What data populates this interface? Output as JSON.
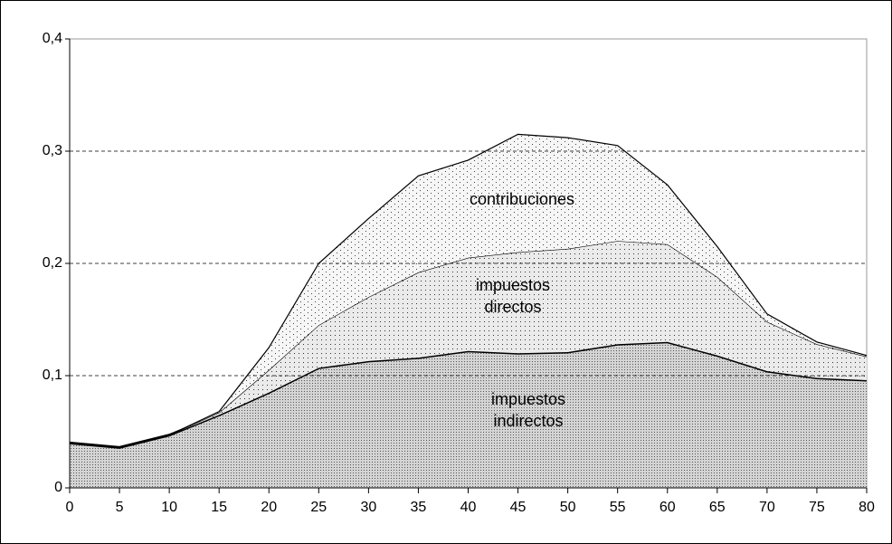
{
  "chart_data": {
    "type": "stacked-area",
    "x": [
      0,
      5,
      10,
      15,
      20,
      25,
      30,
      35,
      40,
      45,
      50,
      55,
      60,
      65,
      70,
      75,
      80
    ],
    "series": [
      {
        "name": "impuestos indirectos",
        "color": "#d4d4d4",
        "values": [
          0.04,
          0.036,
          0.047,
          0.065,
          0.085,
          0.107,
          0.113,
          0.116,
          0.122,
          0.12,
          0.121,
          0.128,
          0.13,
          0.118,
          0.104,
          0.098,
          0.096
        ]
      },
      {
        "name": "impuestos directos",
        "color": "#ebebeb",
        "values": [
          0,
          0,
          0,
          0.002,
          0.02,
          0.038,
          0.057,
          0.076,
          0.083,
          0.09,
          0.092,
          0.092,
          0.087,
          0.07,
          0.044,
          0.03,
          0.021
        ]
      },
      {
        "name": "contribuciones",
        "color": "#f6f6f6",
        "values": [
          0,
          0,
          0,
          0.001,
          0.02,
          0.055,
          0.07,
          0.086,
          0.087,
          0.105,
          0.099,
          0.085,
          0.053,
          0.027,
          0.007,
          0.002,
          0.001
        ]
      }
    ],
    "xlim": [
      0,
      80
    ],
    "xticks": [
      0,
      5,
      10,
      15,
      20,
      25,
      30,
      35,
      40,
      45,
      50,
      55,
      60,
      65,
      70,
      75,
      80
    ],
    "ylim": [
      0,
      0.4
    ],
    "yticks": [
      0,
      {
        "value": 0.1,
        "label": "0,1"
      },
      {
        "value": 0.2,
        "label": "0,2"
      },
      {
        "value": 0.3,
        "label": "0,3"
      },
      {
        "value": 0.4,
        "label": "0,4"
      }
    ],
    "grid": true
  }
}
